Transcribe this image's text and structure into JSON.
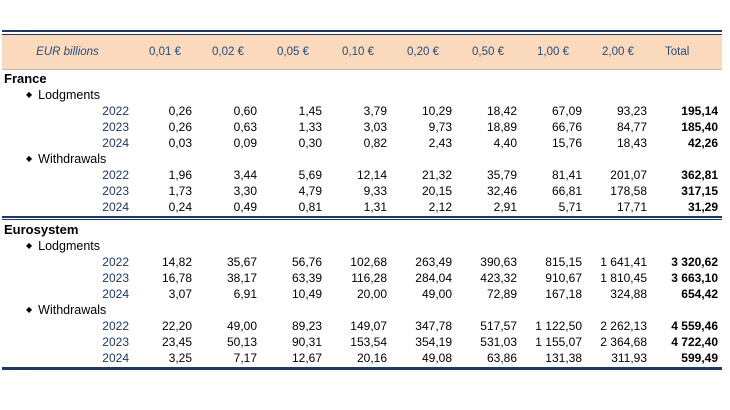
{
  "header": {
    "unit_label": "EUR billions",
    "columns": [
      "0,01 €",
      "0,02 €",
      "0,05 €",
      "0,10 €",
      "0,20 €",
      "0,50 €",
      "1,00 €",
      "2,00 €",
      "Total"
    ]
  },
  "sections": [
    {
      "name": "France",
      "groups": [
        {
          "name": "Lodgments",
          "rows": [
            {
              "year": "2022",
              "values": [
                "0,26",
                "0,60",
                "1,45",
                "3,79",
                "10,29",
                "18,42",
                "67,09",
                "93,23",
                "195,14"
              ]
            },
            {
              "year": "2023",
              "values": [
                "0,26",
                "0,63",
                "1,33",
                "3,03",
                "9,73",
                "18,89",
                "66,76",
                "84,77",
                "185,40"
              ]
            },
            {
              "year": "2024",
              "values": [
                "0,03",
                "0,09",
                "0,30",
                "0,82",
                "2,43",
                "4,40",
                "15,76",
                "18,43",
                "42,26"
              ]
            }
          ]
        },
        {
          "name": "Withdrawals",
          "rows": [
            {
              "year": "2022",
              "values": [
                "1,96",
                "3,44",
                "5,69",
                "12,14",
                "21,32",
                "35,79",
                "81,41",
                "201,07",
                "362,81"
              ]
            },
            {
              "year": "2023",
              "values": [
                "1,73",
                "3,30",
                "4,79",
                "9,33",
                "20,15",
                "32,46",
                "66,81",
                "178,58",
                "317,15"
              ]
            },
            {
              "year": "2024",
              "values": [
                "0,24",
                "0,49",
                "0,81",
                "1,31",
                "2,12",
                "2,91",
                "5,71",
                "17,71",
                "31,29"
              ]
            }
          ]
        }
      ]
    },
    {
      "name": "Eurosystem",
      "groups": [
        {
          "name": "Lodgments",
          "rows": [
            {
              "year": "2022",
              "values": [
                "14,82",
                "35,67",
                "56,76",
                "102,68",
                "263,49",
                "390,63",
                "815,15",
                "1 641,41",
                "3 320,62"
              ]
            },
            {
              "year": "2023",
              "values": [
                "16,78",
                "38,17",
                "63,39",
                "116,28",
                "284,04",
                "423,32",
                "910,67",
                "1 810,45",
                "3 663,10"
              ]
            },
            {
              "year": "2024",
              "values": [
                "3,07",
                "6,91",
                "10,49",
                "20,00",
                "49,00",
                "72,89",
                "167,18",
                "324,88",
                "654,42"
              ]
            }
          ]
        },
        {
          "name": "Withdrawals",
          "rows": [
            {
              "year": "2022",
              "values": [
                "22,20",
                "49,00",
                "89,23",
                "149,07",
                "347,78",
                "517,57",
                "1 122,50",
                "2 262,13",
                "4 559,46"
              ]
            },
            {
              "year": "2023",
              "values": [
                "23,45",
                "50,13",
                "90,31",
                "153,54",
                "354,19",
                "531,03",
                "1 155,07",
                "2 364,68",
                "4 722,40"
              ]
            },
            {
              "year": "2024",
              "values": [
                "3,25",
                "7,17",
                "12,67",
                "20,16",
                "49,08",
                "63,86",
                "131,38",
                "311,93",
                "599,49"
              ]
            }
          ]
        }
      ]
    }
  ]
}
